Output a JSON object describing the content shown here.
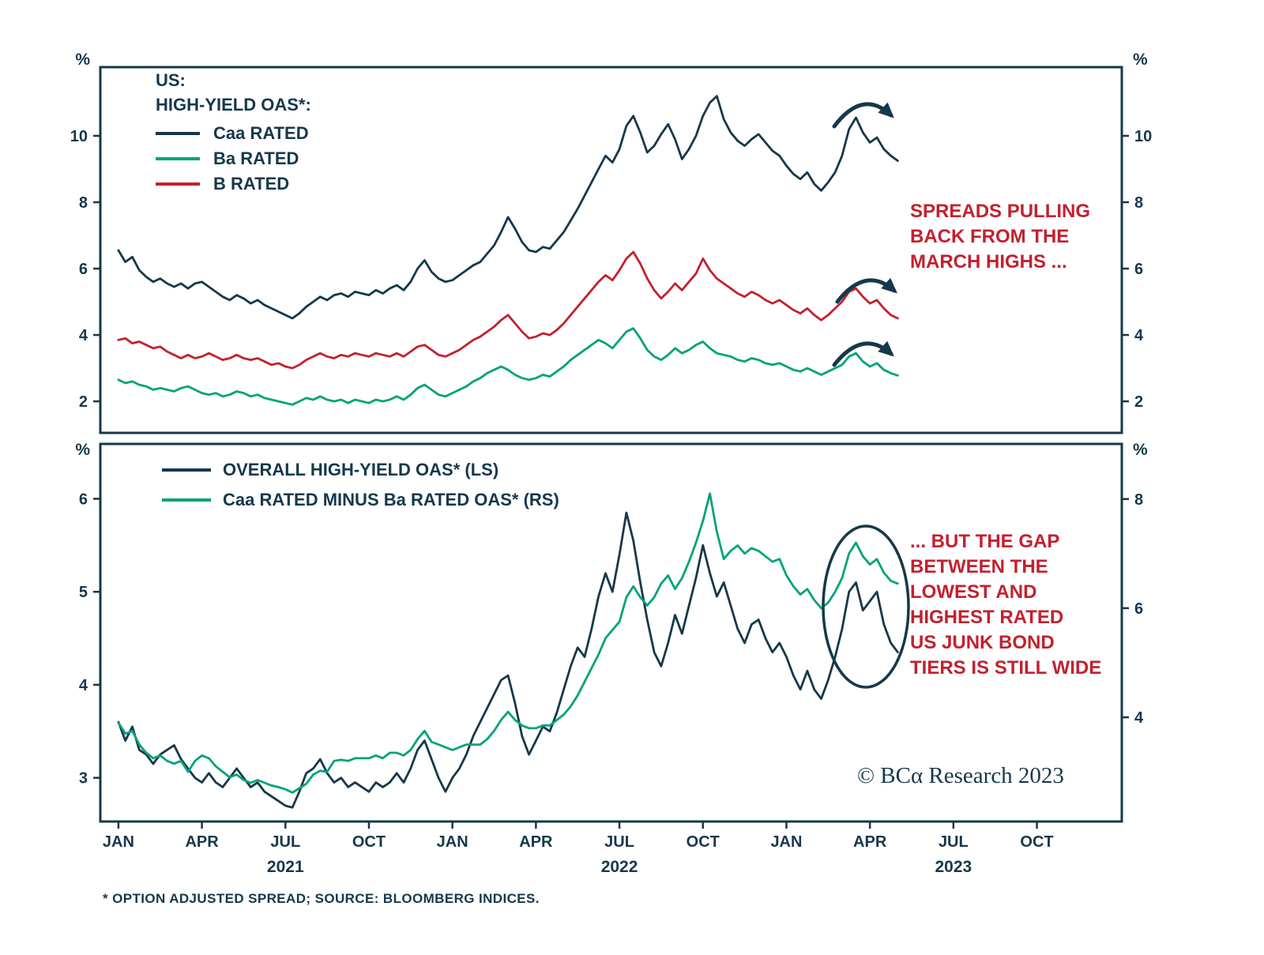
{
  "units": {
    "percent": "%"
  },
  "colors": {
    "dark": "#16384a",
    "green": "#00a379",
    "red": "#c2212f",
    "annotation_red": "#c2212f",
    "background": "#ffffff"
  },
  "x_note": "x values are months elapsed since Jan 2021 (0 = Jan 2021), weekly resolution",
  "x_months_from_jan2021": [
    0,
    0.25,
    0.5,
    0.75,
    1,
    1.25,
    1.5,
    1.75,
    2,
    2.25,
    2.5,
    2.75,
    3,
    3.25,
    3.5,
    3.75,
    4,
    4.25,
    4.5,
    4.75,
    5,
    5.25,
    5.5,
    5.75,
    6,
    6.25,
    6.5,
    6.75,
    7,
    7.25,
    7.5,
    7.75,
    8,
    8.25,
    8.5,
    8.75,
    9,
    9.25,
    9.5,
    9.75,
    10,
    10.25,
    10.5,
    10.75,
    11,
    11.25,
    11.5,
    11.75,
    12,
    12.25,
    12.5,
    12.75,
    13,
    13.25,
    13.5,
    13.75,
    14,
    14.25,
    14.5,
    14.75,
    15,
    15.25,
    15.5,
    15.75,
    16,
    16.25,
    16.5,
    16.75,
    17,
    17.25,
    17.5,
    17.75,
    18,
    18.25,
    18.5,
    18.75,
    19,
    19.25,
    19.5,
    19.75,
    20,
    20.25,
    20.5,
    20.75,
    21,
    21.25,
    21.5,
    21.75,
    22,
    22.25,
    22.5,
    22.75,
    23,
    23.25,
    23.5,
    23.75,
    24,
    24.25,
    24.5,
    24.75,
    25,
    25.25,
    25.5,
    25.75,
    26,
    26.25,
    26.5,
    26.75,
    27,
    27.25,
    27.5,
    27.75,
    28
  ],
  "x_axis": {
    "xlim_months": [
      -0.65,
      36.05
    ],
    "tick_months": [
      0,
      3,
      6,
      9,
      12,
      15,
      18,
      21,
      24,
      27,
      30,
      33
    ],
    "tick_labels": [
      "JAN",
      "APR",
      "JUL",
      "OCT",
      "JAN",
      "APR",
      "JUL",
      "OCT",
      "JAN",
      "APR",
      "JUL",
      "OCT"
    ],
    "years": [
      {
        "label": "2021",
        "month": 6
      },
      {
        "label": "2022",
        "month": 18
      },
      {
        "label": "2023",
        "month": 30
      }
    ]
  },
  "chart_data": [
    {
      "type": "line",
      "panel": "top",
      "unit": "%",
      "legend_heading": [
        "US:",
        "HIGH-YIELD OAS*:"
      ],
      "ylim": [
        1.05,
        12.07
      ],
      "yticks": [
        2,
        4,
        6,
        8,
        10
      ],
      "grid": false,
      "annotation": "SPREADS PULLING\nBACK FROM THE\nMARCH HIGHS ...",
      "series": [
        {
          "name": "Caa RATED",
          "color_key": "dark",
          "values": [
            6.55,
            6.2,
            6.35,
            5.95,
            5.75,
            5.6,
            5.7,
            5.55,
            5.45,
            5.55,
            5.4,
            5.55,
            5.6,
            5.45,
            5.3,
            5.15,
            5.05,
            5.2,
            5.1,
            4.95,
            5.05,
            4.9,
            4.8,
            4.7,
            4.6,
            4.5,
            4.65,
            4.85,
            5.0,
            5.15,
            5.05,
            5.2,
            5.25,
            5.15,
            5.3,
            5.25,
            5.2,
            5.35,
            5.25,
            5.4,
            5.5,
            5.35,
            5.6,
            6.0,
            6.25,
            5.9,
            5.7,
            5.6,
            5.65,
            5.8,
            5.95,
            6.1,
            6.2,
            6.45,
            6.7,
            7.1,
            7.55,
            7.2,
            6.8,
            6.55,
            6.5,
            6.65,
            6.6,
            6.85,
            7.1,
            7.45,
            7.8,
            8.2,
            8.6,
            9.0,
            9.4,
            9.2,
            9.6,
            10.3,
            10.6,
            10.1,
            9.5,
            9.7,
            10.05,
            10.35,
            9.9,
            9.3,
            9.6,
            10.0,
            10.6,
            11.0,
            11.2,
            10.5,
            10.1,
            9.85,
            9.7,
            9.9,
            10.05,
            9.8,
            9.55,
            9.4,
            9.1,
            8.85,
            8.7,
            8.9,
            8.55,
            8.35,
            8.6,
            8.9,
            9.4,
            10.2,
            10.55,
            10.1,
            9.8,
            9.95,
            9.6,
            9.4,
            9.25
          ]
        },
        {
          "name": "Ba RATED",
          "color_key": "green",
          "values": [
            2.65,
            2.55,
            2.6,
            2.5,
            2.45,
            2.35,
            2.4,
            2.35,
            2.3,
            2.4,
            2.45,
            2.35,
            2.25,
            2.2,
            2.25,
            2.15,
            2.2,
            2.3,
            2.25,
            2.15,
            2.2,
            2.1,
            2.05,
            2.0,
            1.95,
            1.9,
            2.0,
            2.1,
            2.05,
            2.15,
            2.05,
            2.0,
            2.05,
            1.95,
            2.05,
            2.0,
            1.95,
            2.05,
            2.0,
            2.05,
            2.15,
            2.05,
            2.2,
            2.4,
            2.5,
            2.35,
            2.2,
            2.15,
            2.25,
            2.35,
            2.45,
            2.6,
            2.7,
            2.85,
            2.95,
            3.05,
            2.95,
            2.8,
            2.7,
            2.65,
            2.7,
            2.8,
            2.75,
            2.9,
            3.05,
            3.25,
            3.4,
            3.55,
            3.7,
            3.85,
            3.75,
            3.6,
            3.85,
            4.1,
            4.2,
            3.9,
            3.55,
            3.35,
            3.25,
            3.4,
            3.6,
            3.45,
            3.55,
            3.7,
            3.8,
            3.6,
            3.45,
            3.4,
            3.35,
            3.25,
            3.2,
            3.3,
            3.25,
            3.15,
            3.1,
            3.15,
            3.05,
            2.95,
            2.9,
            3.0,
            2.9,
            2.8,
            2.9,
            3.0,
            3.1,
            3.35,
            3.45,
            3.2,
            3.05,
            3.15,
            2.95,
            2.85,
            2.78
          ]
        },
        {
          "name": "B RATED",
          "color_key": "red",
          "values": [
            3.85,
            3.9,
            3.75,
            3.8,
            3.7,
            3.6,
            3.65,
            3.5,
            3.4,
            3.3,
            3.4,
            3.3,
            3.35,
            3.45,
            3.35,
            3.25,
            3.3,
            3.4,
            3.3,
            3.25,
            3.3,
            3.2,
            3.1,
            3.15,
            3.05,
            3.0,
            3.1,
            3.25,
            3.35,
            3.45,
            3.35,
            3.3,
            3.4,
            3.35,
            3.45,
            3.4,
            3.35,
            3.45,
            3.4,
            3.35,
            3.45,
            3.35,
            3.5,
            3.65,
            3.7,
            3.55,
            3.4,
            3.35,
            3.45,
            3.55,
            3.7,
            3.85,
            3.95,
            4.1,
            4.25,
            4.45,
            4.6,
            4.35,
            4.1,
            3.9,
            3.95,
            4.05,
            4.0,
            4.15,
            4.35,
            4.6,
            4.85,
            5.1,
            5.35,
            5.6,
            5.8,
            5.65,
            5.95,
            6.3,
            6.5,
            6.15,
            5.7,
            5.35,
            5.1,
            5.3,
            5.55,
            5.35,
            5.6,
            5.85,
            6.3,
            5.95,
            5.7,
            5.55,
            5.4,
            5.25,
            5.15,
            5.3,
            5.2,
            5.05,
            4.95,
            5.05,
            4.9,
            4.75,
            4.65,
            4.8,
            4.6,
            4.45,
            4.6,
            4.8,
            5.0,
            5.3,
            5.4,
            5.15,
            4.95,
            5.05,
            4.8,
            4.6,
            4.5
          ]
        }
      ]
    },
    {
      "type": "line",
      "panel": "bottom",
      "unit": "%",
      "left_ylim": [
        2.53,
        6.59
      ],
      "left_yticks": [
        3,
        4,
        5,
        6
      ],
      "right_ylim": [
        2.09,
        9.01
      ],
      "right_yticks": [
        4,
        6,
        8
      ],
      "grid": false,
      "annotation": "... BUT THE GAP\nBETWEEN THE\nLOWEST AND\nHIGHEST RATED\nUS JUNK BOND\nTIERS IS STILL WIDE",
      "series": [
        {
          "name": "OVERALL HIGH-YIELD OAS* (LS)",
          "axis": "left",
          "color_key": "dark",
          "values": [
            3.6,
            3.4,
            3.55,
            3.3,
            3.25,
            3.15,
            3.25,
            3.3,
            3.35,
            3.2,
            3.1,
            3.0,
            2.95,
            3.05,
            2.95,
            2.9,
            3.0,
            3.1,
            3.0,
            2.9,
            2.95,
            2.85,
            2.8,
            2.75,
            2.7,
            2.68,
            2.85,
            3.05,
            3.1,
            3.2,
            3.05,
            2.95,
            3.0,
            2.9,
            2.95,
            2.9,
            2.85,
            2.95,
            2.9,
            2.95,
            3.05,
            2.95,
            3.1,
            3.3,
            3.4,
            3.2,
            3.0,
            2.85,
            3.0,
            3.1,
            3.25,
            3.45,
            3.6,
            3.75,
            3.9,
            4.05,
            4.1,
            3.8,
            3.45,
            3.25,
            3.4,
            3.55,
            3.5,
            3.7,
            3.95,
            4.2,
            4.4,
            4.3,
            4.6,
            4.95,
            5.2,
            5.0,
            5.4,
            5.85,
            5.55,
            5.1,
            4.7,
            4.35,
            4.2,
            4.45,
            4.75,
            4.55,
            4.85,
            5.15,
            5.5,
            5.2,
            4.95,
            5.1,
            4.85,
            4.6,
            4.45,
            4.65,
            4.7,
            4.5,
            4.35,
            4.45,
            4.3,
            4.1,
            3.95,
            4.15,
            3.95,
            3.85,
            4.05,
            4.3,
            4.6,
            5.0,
            5.1,
            4.8,
            4.9,
            5.0,
            4.65,
            4.45,
            4.35
          ]
        },
        {
          "name": "Caa RATED MINUS Ba RATED OAS* (RS)",
          "axis": "right",
          "color_key": "green",
          "values": [
            3.9,
            3.7,
            3.75,
            3.5,
            3.35,
            3.25,
            3.3,
            3.2,
            3.15,
            3.2,
            3.0,
            3.2,
            3.3,
            3.25,
            3.1,
            3.0,
            2.9,
            2.95,
            2.85,
            2.8,
            2.85,
            2.8,
            2.75,
            2.72,
            2.68,
            2.62,
            2.7,
            2.78,
            2.95,
            3.02,
            3.0,
            3.2,
            3.22,
            3.2,
            3.25,
            3.25,
            3.25,
            3.3,
            3.25,
            3.35,
            3.35,
            3.3,
            3.4,
            3.6,
            3.75,
            3.55,
            3.5,
            3.45,
            3.4,
            3.45,
            3.5,
            3.5,
            3.5,
            3.6,
            3.75,
            3.95,
            4.1,
            3.95,
            3.85,
            3.8,
            3.8,
            3.85,
            3.85,
            3.95,
            4.05,
            4.2,
            4.4,
            4.65,
            4.9,
            5.15,
            5.45,
            5.6,
            5.75,
            6.2,
            6.4,
            6.2,
            6.05,
            6.2,
            6.45,
            6.6,
            6.35,
            6.55,
            6.85,
            7.2,
            7.6,
            8.1,
            7.4,
            6.9,
            7.05,
            7.15,
            7.0,
            7.1,
            7.05,
            6.95,
            6.85,
            6.9,
            6.6,
            6.4,
            6.25,
            6.35,
            6.15,
            6.0,
            6.1,
            6.3,
            6.55,
            7.0,
            7.2,
            6.95,
            6.8,
            6.9,
            6.65,
            6.5,
            6.45
          ]
        }
      ]
    }
  ],
  "footnote": "* OPTION ADJUSTED SPREAD; SOURCE: BLOOMBERG INDICES.",
  "copyright": "© BCα Research 2023"
}
